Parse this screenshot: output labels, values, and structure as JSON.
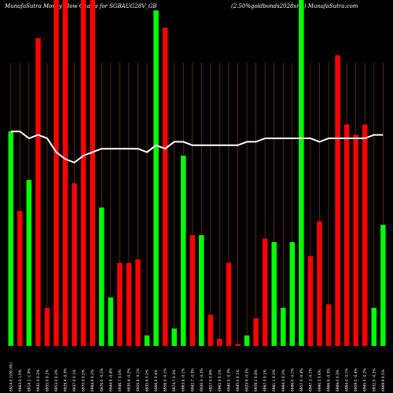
{
  "header": {
    "left": "MunafaSutra  Money Flow  Charts for SGBAUG28V_GB",
    "right": "(2.50%goldbonds2028sr-v) MunafaSutra.com"
  },
  "colors": {
    "background": "#000000",
    "up": "#00ff00",
    "down": "#ff0000",
    "grid": "#8b4513",
    "line": "#ffffff"
  },
  "chart_data": {
    "type": "bar",
    "title": "MunafaSutra  Money Flow  Charts for SGBAUG28V_GB",
    "subtitle": "(2.50%goldbonds2028sr-v) MunafaSutra.com",
    "ylim": [
      0,
      100
    ],
    "categories": [
      "6914.0 (100.0%)",
      "6983.4 1.0%",
      "6914.2 -1.0%",
      "6932.3 0.2%",
      "6935.0 0.1%",
      "6953.0 0.2%",
      "6929.4 -0.3%",
      "6937.0 0.1%",
      "6970.0 0.5%",
      "6984.6 0.2%",
      "6976.0 -0.1%",
      "6944.9 -0.4%",
      "6946.7 0.0%",
      "6930.4 -0.2%",
      "6920.0 -0.1%",
      "6935.9 0.2%",
      "6966.0 0.4%",
      "6956.0 -0.1%",
      "6974.7 0.3%",
      "6963.8 -0.1%",
      "6942.7 -0.3%",
      "6930.3 -0.2%",
      "6957.0 0.4%",
      "6962.0 0.1%",
      "6940.0 -0.3%",
      "6945.0 0.1%",
      "6933.9 -0.2%",
      "6959.2 0.4%",
      "6967.0 0.1%",
      "6981.1 0.2%",
      "6994.3 0.2%",
      "6986.0 -0.1%",
      "6957.0 -0.4%",
      "6947.3 -0.1%",
      "6990.5 0.6%",
      "6966.8 -0.3%",
      "6989.0 0.3%",
      "6984.0 -0.1%",
      "6959.5 -0.4%",
      "6945.5 -0.2%",
      "6932.0 -0.2%",
      "6969.9 0.5%"
    ],
    "series": [
      {
        "direction": [
          "up",
          "down",
          "up",
          "down",
          "down",
          "down",
          "down",
          "down",
          "down",
          "down",
          "up",
          "up",
          "down",
          "down",
          "down",
          "up",
          "up",
          "down",
          "up",
          "up",
          "down",
          "up",
          "down",
          "down",
          "down",
          "down",
          "up",
          "down",
          "down",
          "up",
          "up",
          "up",
          "up",
          "down",
          "down",
          "down",
          "down",
          "down",
          "down",
          "down",
          "up",
          "up"
        ],
        "values": [
          62,
          39,
          48,
          89,
          11,
          100,
          100,
          47,
          100,
          100,
          40,
          14,
          24,
          24,
          25,
          3,
          97,
          92,
          5,
          55,
          32,
          32,
          9,
          2,
          24,
          0.5,
          3,
          8,
          31,
          30,
          11,
          30,
          100,
          26,
          36,
          12,
          84,
          64,
          61,
          64,
          11,
          35
        ]
      }
    ],
    "line": [
      62,
      62,
      60,
      61,
      60,
      56,
      54,
      53,
      55,
      56,
      57,
      57,
      57,
      57,
      57,
      56,
      58,
      57,
      59,
      59,
      58,
      58,
      58,
      58,
      58,
      58,
      59,
      59,
      60,
      60,
      60,
      60,
      60,
      60,
      59,
      60,
      60,
      60,
      60,
      60,
      61,
      61
    ]
  }
}
